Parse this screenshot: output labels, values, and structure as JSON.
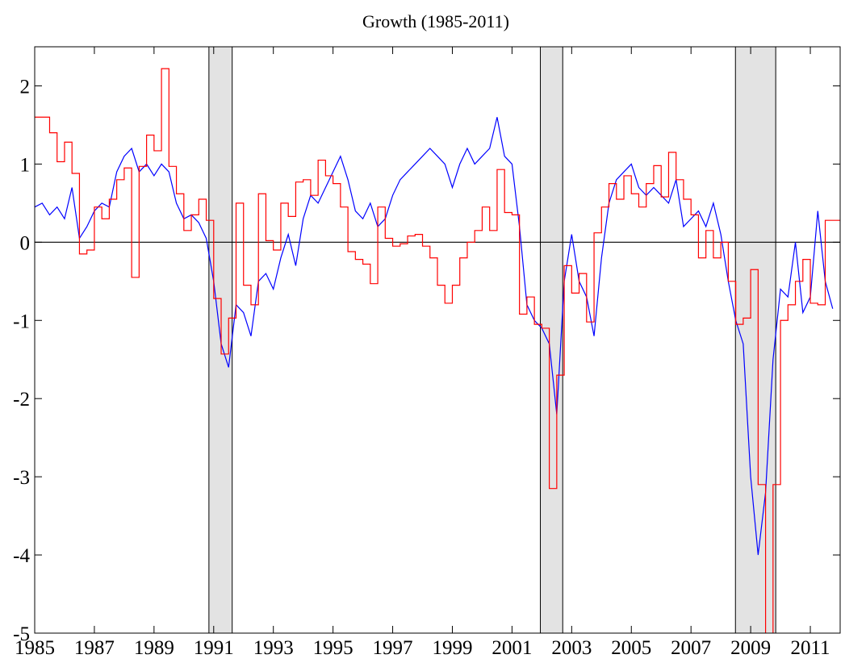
{
  "chart_data": {
    "type": "line",
    "title": "Growth (1985-2011)",
    "xlim": [
      1985,
      2012
    ],
    "ylim": [
      -5,
      2.5
    ],
    "xticks": [
      1985,
      1987,
      1989,
      1991,
      1993,
      1995,
      1997,
      1999,
      2001,
      2003,
      2005,
      2007,
      2009,
      2011
    ],
    "yticks": [
      2,
      1,
      0,
      -1,
      -2,
      -3,
      -4,
      -5
    ],
    "zero_line": true,
    "shading_color": "#e3e3e3",
    "shading": [
      {
        "start": 1990.84,
        "end": 1991.62
      },
      {
        "start": 2001.95,
        "end": 2002.7
      },
      {
        "start": 2008.49,
        "end": 2009.84
      }
    ],
    "series": [
      {
        "color": "#0000ff",
        "step": false,
        "x": [
          1985,
          1985.25,
          1985.5,
          1985.75,
          1986,
          1986.25,
          1986.5,
          1986.75,
          1987,
          1987.25,
          1987.5,
          1987.75,
          1988,
          1988.25,
          1988.5,
          1988.75,
          1989,
          1989.25,
          1989.5,
          1989.75,
          1990,
          1990.25,
          1990.5,
          1990.75,
          1991,
          1991.25,
          1991.5,
          1991.75,
          1992,
          1992.25,
          1992.5,
          1992.75,
          1993,
          1993.25,
          1993.5,
          1993.75,
          1994,
          1994.25,
          1994.5,
          1994.75,
          1995,
          1995.25,
          1995.5,
          1995.75,
          1996,
          1996.25,
          1996.5,
          1996.75,
          1997,
          1997.25,
          1997.5,
          1997.75,
          1998,
          1998.25,
          1998.5,
          1998.75,
          1999,
          1999.25,
          1999.5,
          1999.75,
          2000,
          2000.25,
          2000.5,
          2000.75,
          2001,
          2001.25,
          2001.5,
          2001.75,
          2002,
          2002.25,
          2002.5,
          2002.75,
          2003,
          2003.25,
          2003.5,
          2003.75,
          2004,
          2004.25,
          2004.5,
          2004.75,
          2005,
          2005.25,
          2005.5,
          2005.75,
          2006,
          2006.25,
          2006.5,
          2006.75,
          2007,
          2007.25,
          2007.5,
          2007.75,
          2008,
          2008.25,
          2008.5,
          2008.75,
          2009,
          2009.25,
          2009.5,
          2009.75,
          2010,
          2010.25,
          2010.5,
          2010.75,
          2011,
          2011.25,
          2011.5,
          2011.75
        ],
        "values": [
          0.45,
          0.5,
          0.35,
          0.45,
          0.3,
          0.7,
          0.05,
          0.2,
          0.4,
          0.5,
          0.45,
          0.9,
          1.1,
          1.2,
          0.9,
          1.0,
          0.85,
          1.0,
          0.9,
          0.5,
          0.3,
          0.35,
          0.25,
          0.05,
          -0.5,
          -1.3,
          -1.6,
          -0.8,
          -0.9,
          -1.2,
          -0.5,
          -0.4,
          -0.6,
          -0.2,
          0.1,
          -0.3,
          0.3,
          0.6,
          0.5,
          0.7,
          0.9,
          1.1,
          0.8,
          0.4,
          0.3,
          0.5,
          0.2,
          0.3,
          0.6,
          0.8,
          0.9,
          1.0,
          1.1,
          1.2,
          1.1,
          1.0,
          0.7,
          1.0,
          1.2,
          1.0,
          1.1,
          1.2,
          1.6,
          1.1,
          1.0,
          0.2,
          -0.8,
          -1.0,
          -1.1,
          -1.3,
          -2.2,
          -0.5,
          0.1,
          -0.5,
          -0.7,
          -1.2,
          -0.2,
          0.5,
          0.8,
          0.9,
          1.0,
          0.7,
          0.6,
          0.7,
          0.6,
          0.5,
          0.8,
          0.2,
          0.3,
          0.4,
          0.2,
          0.5,
          0.1,
          -0.5,
          -1.0,
          -1.3,
          -3.0,
          -4.0,
          -3.2,
          -1.5,
          -0.6,
          -0.7,
          0.0,
          -0.9,
          -0.7,
          0.4,
          -0.5,
          -0.85
        ]
      },
      {
        "color": "#ff0000",
        "step": true,
        "x": [
          1985,
          1985.25,
          1985.5,
          1985.75,
          1986,
          1986.25,
          1986.5,
          1986.75,
          1987,
          1987.25,
          1987.5,
          1987.75,
          1988,
          1988.25,
          1988.5,
          1988.75,
          1989,
          1989.25,
          1989.5,
          1989.75,
          1990,
          1990.25,
          1990.5,
          1990.75,
          1991,
          1991.25,
          1991.5,
          1991.75,
          1992,
          1992.25,
          1992.5,
          1992.75,
          1993,
          1993.25,
          1993.5,
          1993.75,
          1994,
          1994.25,
          1994.5,
          1994.75,
          1995,
          1995.25,
          1995.5,
          1995.75,
          1996,
          1996.25,
          1996.5,
          1996.75,
          1997,
          1997.25,
          1997.5,
          1997.75,
          1998,
          1998.25,
          1998.5,
          1998.75,
          1999,
          1999.25,
          1999.5,
          1999.75,
          2000,
          2000.25,
          2000.5,
          2000.75,
          2001,
          2001.25,
          2001.5,
          2001.75,
          2002,
          2002.25,
          2002.5,
          2002.75,
          2003,
          2003.25,
          2003.5,
          2003.75,
          2004,
          2004.25,
          2004.5,
          2004.75,
          2005,
          2005.25,
          2005.5,
          2005.75,
          2006,
          2006.25,
          2006.5,
          2006.75,
          2007,
          2007.25,
          2007.5,
          2007.75,
          2008,
          2008.25,
          2008.5,
          2008.75,
          2009,
          2009.25,
          2009.5,
          2009.75,
          2010,
          2010.25,
          2010.5,
          2010.75,
          2011,
          2011.25,
          2011.5,
          2011.75
        ],
        "values": [
          1.6,
          1.6,
          1.4,
          1.03,
          1.28,
          0.88,
          -0.15,
          -0.1,
          0.45,
          0.3,
          0.55,
          0.8,
          0.95,
          -0.45,
          0.97,
          1.37,
          1.17,
          2.22,
          0.97,
          0.62,
          0.15,
          0.35,
          0.55,
          0.28,
          -0.72,
          -1.43,
          -0.97,
          0.5,
          -0.55,
          -0.8,
          0.62,
          0.02,
          -0.1,
          0.5,
          0.33,
          0.77,
          0.8,
          0.6,
          1.05,
          0.85,
          0.75,
          0.45,
          -0.12,
          -0.22,
          -0.28,
          -0.53,
          0.45,
          0.05,
          -0.05,
          -0.02,
          0.08,
          0.1,
          -0.05,
          -0.2,
          -0.55,
          -0.78,
          -0.55,
          -0.2,
          0.0,
          0.15,
          0.45,
          0.15,
          0.93,
          0.38,
          0.35,
          -0.92,
          -0.7,
          -1.05,
          -1.1,
          -3.15,
          -1.7,
          -0.3,
          -0.65,
          -0.4,
          -1.02,
          0.12,
          0.45,
          0.75,
          0.55,
          0.85,
          0.62,
          0.45,
          0.75,
          0.98,
          0.58,
          1.15,
          0.8,
          0.55,
          0.35,
          -0.2,
          0.15,
          -0.2,
          0.0,
          -0.5,
          -1.05,
          -0.97,
          -0.35,
          -3.1,
          -5.3,
          -3.1,
          -1.0,
          -0.8,
          -0.5,
          -0.22,
          -0.78,
          -0.8,
          0.28,
          0.28
        ]
      }
    ]
  }
}
